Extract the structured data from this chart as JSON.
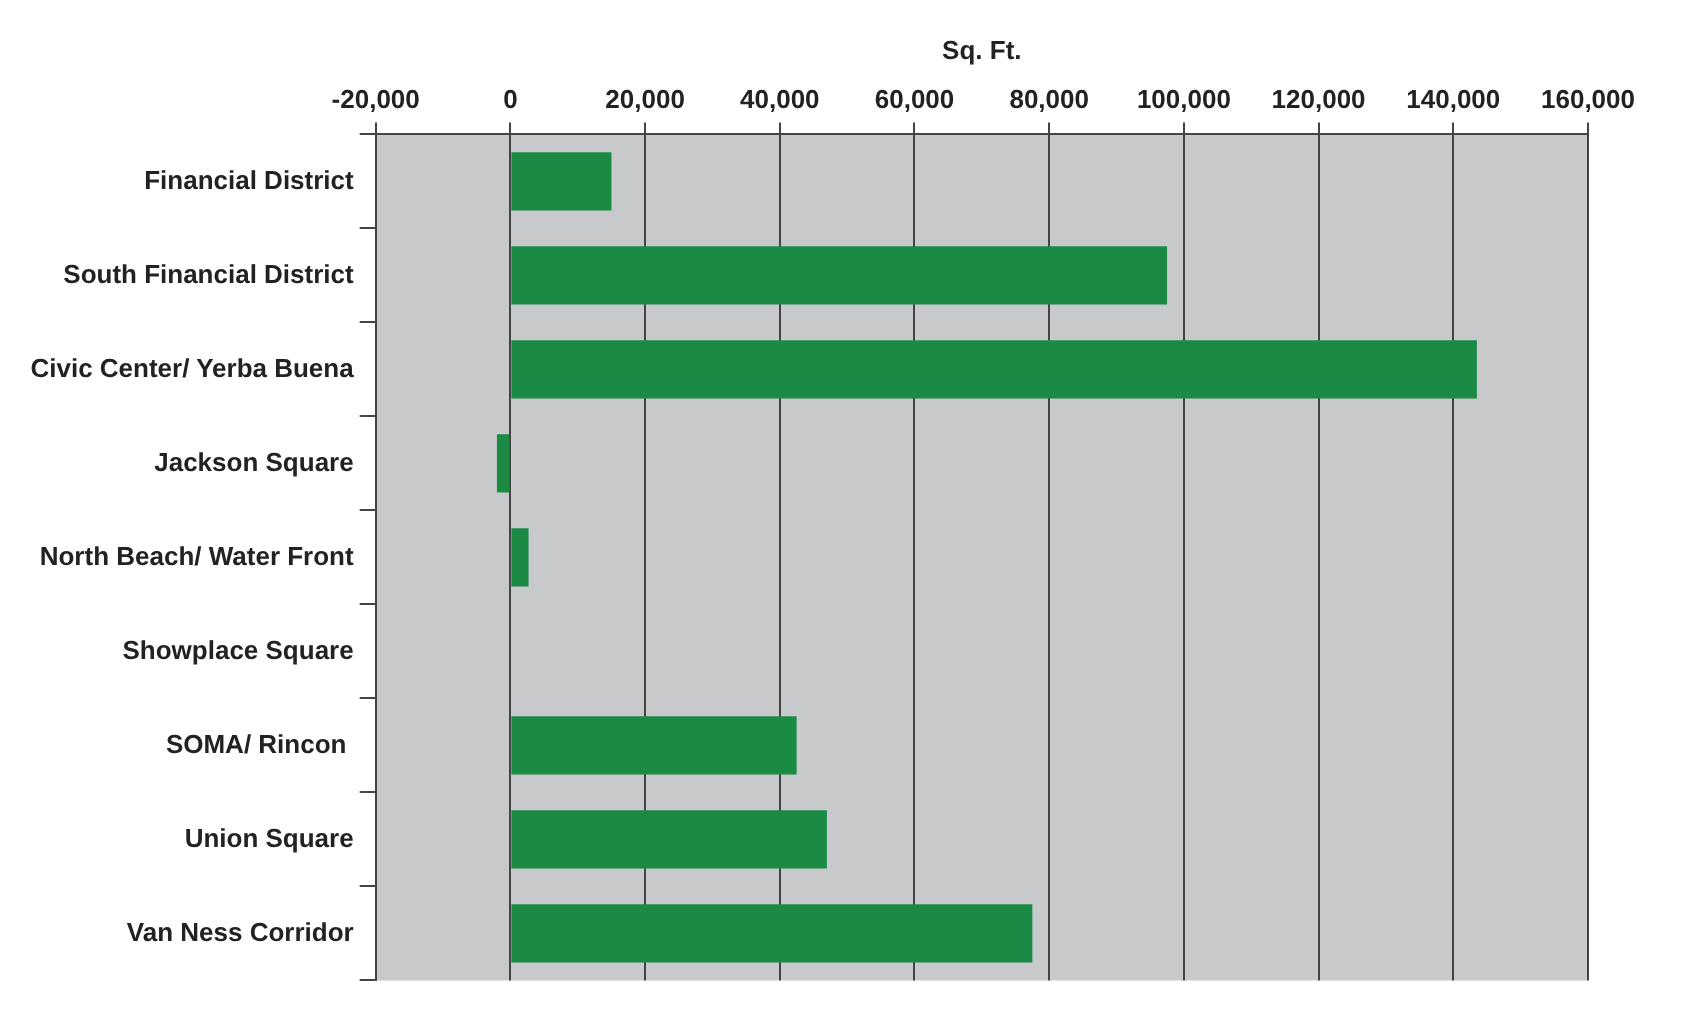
{
  "chart_data": {
    "type": "bar",
    "orientation": "horizontal",
    "xlabel": "Sq. Ft.",
    "categories": [
      "Financial District",
      "South Financial District",
      "Civic Center/ Yerba Buena",
      "Jackson Square",
      "North Beach/ Water Front",
      "Showplace Square",
      "SOMA/ Rincon ",
      "Union Square",
      "Van Ness Corridor"
    ],
    "values": [
      15000,
      97500,
      143500,
      -2000,
      2700,
      0,
      42500,
      47000,
      77500
    ],
    "color": "#1a8a45",
    "xlim": [
      -20000,
      160000
    ],
    "xticks": [
      {
        "value": -20000,
        "label": "-20,000"
      },
      0,
      {
        "value": 20000,
        "label": "20,000"
      },
      {
        "value": 40000,
        "label": "40,000"
      },
      {
        "value": 60000,
        "label": "60,000"
      },
      {
        "value": 80000,
        "label": "80,000"
      },
      {
        "value": 100000,
        "label": "100,000"
      },
      {
        "value": 120000,
        "label": "120,000"
      },
      {
        "value": 140000,
        "label": "140,000"
      },
      {
        "value": 160000,
        "label": "160,000"
      }
    ],
    "grid": "x",
    "legend": false
  }
}
